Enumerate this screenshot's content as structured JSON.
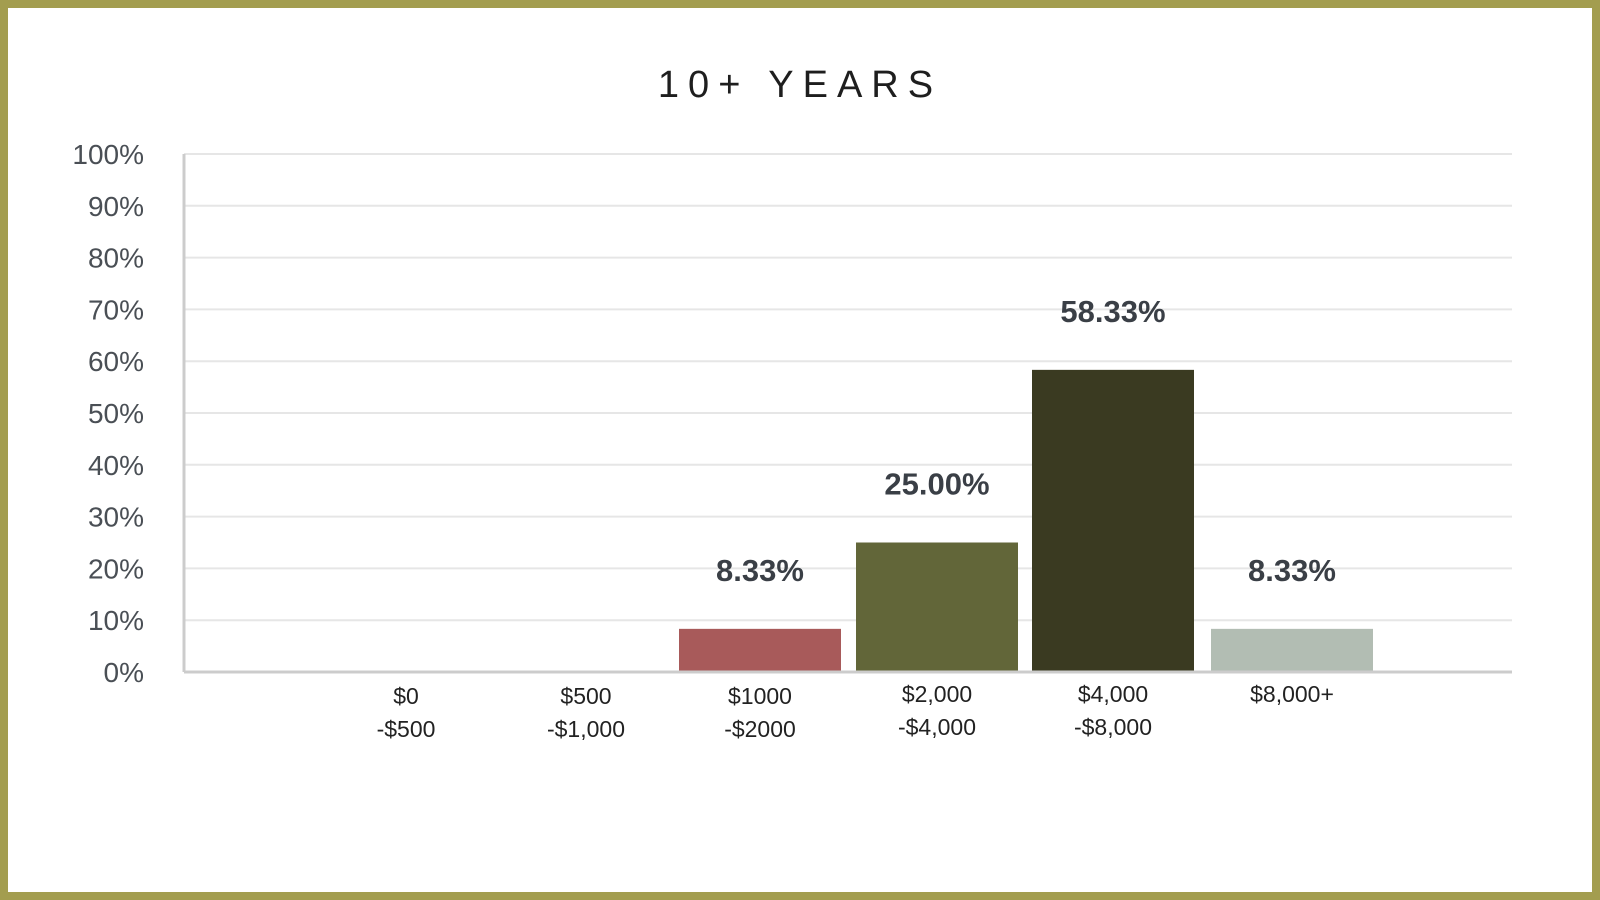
{
  "chart_data": {
    "type": "bar",
    "title": "10+ YEARS",
    "xlabel": "",
    "ylabel": "",
    "ylim": [
      0,
      100
    ],
    "grid": true,
    "y_ticks": [
      "0%",
      "10%",
      "20%",
      "30%",
      "40%",
      "50%",
      "60%",
      "70%",
      "80%",
      "90%",
      "100%"
    ],
    "categories": [
      [
        "$0",
        "-$500"
      ],
      [
        "$500",
        "-$1,000"
      ],
      [
        "$1000",
        "-$2000"
      ],
      [
        "$2,000",
        "-$4,000"
      ],
      [
        "$4,000",
        "-$8,000"
      ],
      [
        "$8,000+"
      ]
    ],
    "values": [
      0,
      0,
      8.33,
      25.0,
      58.33,
      8.33
    ],
    "data_labels": [
      "",
      "",
      "8.33%",
      "25.00%",
      "58.33%",
      "8.33%"
    ],
    "bar_colors": [
      "#c8c8c8",
      "#c8c8c8",
      "#a85a5a",
      "#626639",
      "#3a3a21",
      "#b2bdb3"
    ]
  },
  "colors": {
    "frame_border": "#a39d4f",
    "gridline": "#e6e6e6",
    "axis": "#cccccc"
  }
}
